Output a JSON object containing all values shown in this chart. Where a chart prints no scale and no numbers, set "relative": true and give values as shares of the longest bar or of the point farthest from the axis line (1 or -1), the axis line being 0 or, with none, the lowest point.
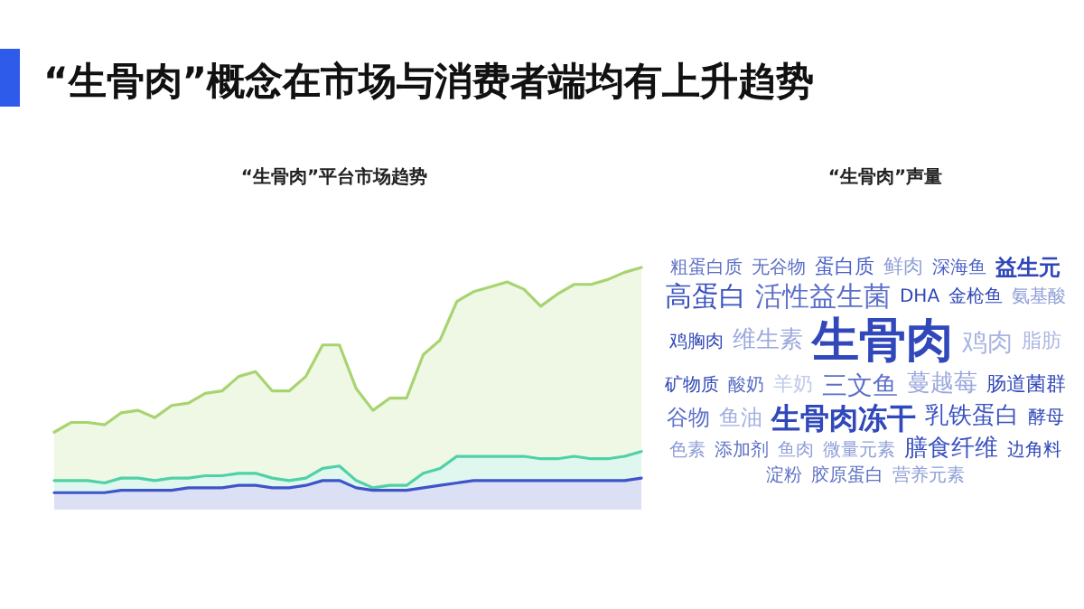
{
  "chart_data": [
    {
      "type": "area",
      "title": "“生骨肉”概念在市场与消费者端均有上升趋势",
      "subtitle": "“生骨肉”平台市场趋势",
      "relative": true,
      "categories": [
        null,
        null,
        null,
        null,
        null,
        null,
        null,
        null,
        null,
        null,
        null,
        null,
        null,
        null,
        null,
        null,
        null,
        null,
        null,
        null,
        null,
        null,
        null,
        null,
        null,
        null,
        null,
        null,
        null,
        null,
        null,
        null,
        null,
        null,
        null,
        null
      ],
      "series": [
        {
          "color": "#a8d46f",
          "values": [
            0.32,
            0.36,
            0.36,
            0.35,
            0.4,
            0.41,
            0.38,
            0.43,
            0.44,
            0.48,
            0.49,
            0.55,
            0.57,
            0.49,
            0.49,
            0.55,
            0.68,
            0.68,
            0.5,
            0.41,
            0.46,
            0.46,
            0.64,
            0.7,
            0.86,
            0.9,
            0.92,
            0.94,
            0.91,
            0.84,
            0.89,
            0.93,
            0.93,
            0.95,
            0.98,
            1.0
          ]
        },
        {
          "color": "#4fd1a5",
          "values": [
            0.12,
            0.12,
            0.12,
            0.11,
            0.13,
            0.13,
            0.12,
            0.13,
            0.13,
            0.14,
            0.14,
            0.15,
            0.15,
            0.13,
            0.12,
            0.13,
            0.17,
            0.18,
            0.12,
            0.09,
            0.1,
            0.1,
            0.15,
            0.17,
            0.22,
            0.22,
            0.22,
            0.22,
            0.22,
            0.21,
            0.21,
            0.22,
            0.21,
            0.21,
            0.22,
            0.24
          ]
        },
        {
          "color": "#3e54c8",
          "values": [
            0.07,
            0.07,
            0.07,
            0.07,
            0.08,
            0.08,
            0.08,
            0.08,
            0.09,
            0.09,
            0.09,
            0.1,
            0.1,
            0.09,
            0.09,
            0.1,
            0.12,
            0.12,
            0.09,
            0.08,
            0.08,
            0.08,
            0.09,
            0.1,
            0.11,
            0.12,
            0.12,
            0.12,
            0.12,
            0.12,
            0.12,
            0.12,
            0.12,
            0.12,
            0.12,
            0.13
          ]
        }
      ]
    },
    {
      "type": "other",
      "title": "“生骨肉”声量",
      "categories": [
        "粗蛋白质",
        "无谷物",
        "蛋白质",
        "鲜肉",
        "深海鱼",
        "益生元",
        "高蛋白",
        "活性益生菌",
        "DHA",
        "金枪鱼",
        "氨基酸",
        "鸡胸肉",
        "维生素",
        "生骨肉",
        "鸡肉",
        "脂肪",
        "矿物质",
        "酸奶",
        "羊奶",
        "三文鱼",
        "蔓越莓",
        "肠道菌群",
        "谷物",
        "鱼油",
        "生骨肉冻干",
        "乳铁蛋白",
        "酵母",
        "色素",
        "添加剂",
        "鱼肉",
        "微量元素",
        "膳食纤维",
        "边角料",
        "淀粉",
        "胶原蛋白",
        "营养元素"
      ],
      "colors": [
        "#5b6fc4",
        "#5b6fc4",
        "#4a60c8",
        "#8f9fd8",
        "#4a60c8",
        "#2f47b8",
        "#3a52c0",
        "#5c6fc9",
        "#2f47b8",
        "#2f47b8",
        "#8f9fd8",
        "#2f47b8",
        "#9aa8de",
        "#3148bb",
        "#aab5e3",
        "#aab5e3",
        "#2f47b8",
        "#5b6fc4",
        "#c0c8ea",
        "#5c6fc9",
        "#9aa8de",
        "#2f47b8",
        "#5c6fc9",
        "#a3afe0",
        "#3148bb",
        "#3a52c0",
        "#2f47b8",
        "#8f9fd8",
        "#5b6fc4",
        "#8f9fd8",
        "#8f9fd8",
        "#3a52c0",
        "#2f47b8",
        "#5b6fc4",
        "#5b6fc4",
        "#8f9fd8"
      ]
    }
  ]
}
